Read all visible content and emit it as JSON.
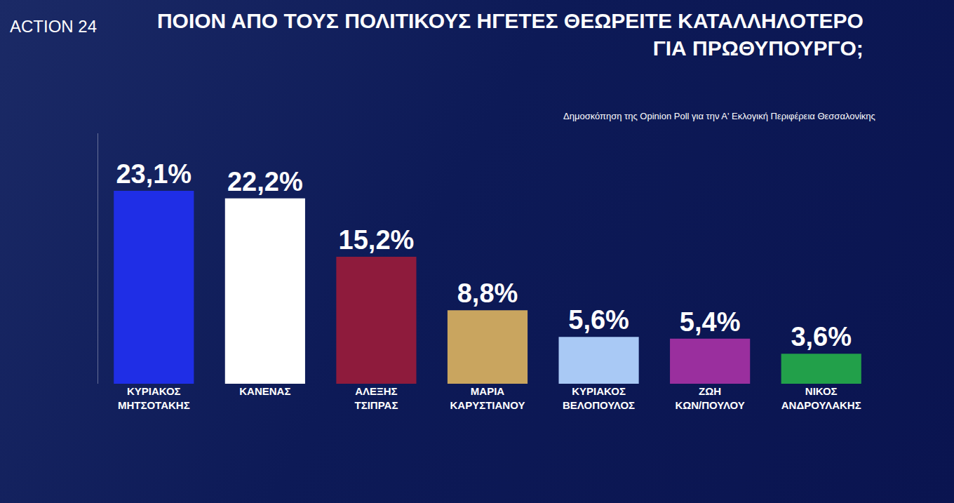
{
  "chart_data": {
    "type": "bar",
    "title": "ΠΟΙΟΝ ΑΠΟ ΤΟΥΣ ΠΟΛΙΤΙΚΟΥΣ ΗΓΕΤΕΣ ΘΕΩΡΕΙΤΕ ΚΑΤΑΛΛΗΛΟΤΕΡΟ\nΓΙΑ ΠΡΩΘΥΠΟΥΡΓΟ;",
    "subtitle": "Δημοσκόπηση της Opinion Poll για την Α' Εκλογική Περιφέρεια Θεσσαλονίκης",
    "annotations": [
      "ACTION 24"
    ],
    "categories": [
      "ΚΥΡΙΑΚΟΣ ΜΗΤΣΟΤΑΚΗΣ",
      "ΚΑΝΕΝΑΣ",
      "ΑΛΕΞΗΣ ΤΣΙΠΡΑΣ",
      "ΜΑΡΙΑ ΚΑΡΥΣΤΙΑΝΟΥ",
      "ΚΥΡΙΑΚΟΣ ΒΕΛΟΠΟΥΛΟΣ",
      "ΖΩΗ ΚΩΝ/ΠΟΥΛΟΥ",
      "ΝΙΚΟΣ ΑΝΔΡΟΥΛΑΚΗΣ"
    ],
    "values": [
      23.1,
      22.2,
      15.2,
      8.8,
      5.6,
      5.4,
      3.6
    ],
    "value_labels": [
      "23,1%",
      "22,2%",
      "15,2%",
      "8,8%",
      "5,6%",
      "5,4%",
      "3,6%"
    ],
    "colors": [
      "#1f2ee6",
      "#ffffff",
      "#8e1b3c",
      "#c9a55f",
      "#a9c9f5",
      "#9a2f9e",
      "#22a04a"
    ],
    "ylim": [
      0,
      30
    ],
    "tick_labels": "x",
    "data_labels": true,
    "grid": false
  }
}
